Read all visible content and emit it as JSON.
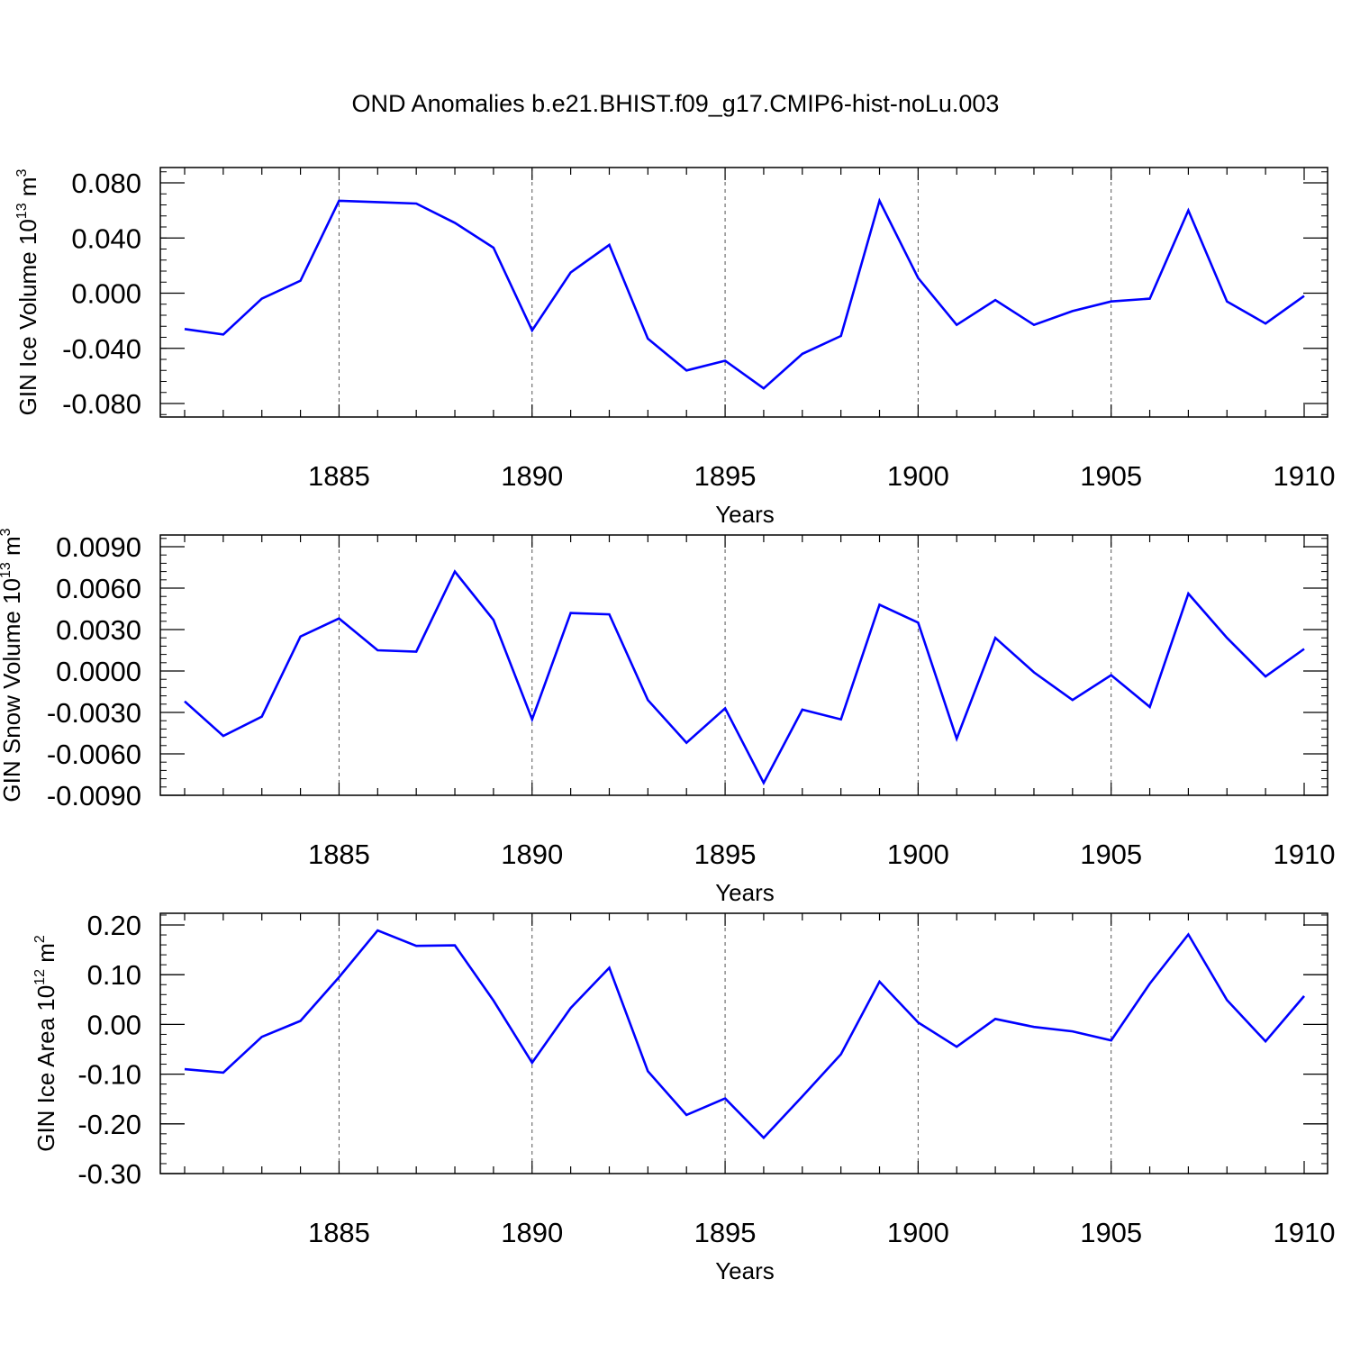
{
  "title": "OND Anomalies b.e21.BHIST.f09_g17.CMIP6-hist-noLu.003",
  "colors": {
    "series": "#0000ff",
    "axis": "#000000",
    "grid": "#555555"
  },
  "chart_data": [
    {
      "type": "line",
      "title": "",
      "xlabel": "Years",
      "ylabel_base": "GIN Ice Volume 10",
      "ylabel_exp": "13",
      "ylabel_unit": " m",
      "ylabel_unit_exp": "3",
      "xlim": [
        1881,
        1910
      ],
      "ylim": [
        -0.09,
        0.09
      ],
      "xticks": [
        1885,
        1890,
        1895,
        1900,
        1905,
        1910
      ],
      "xtick_labels": [
        "1885",
        "1890",
        "1895",
        "1900",
        "1905",
        "1910"
      ],
      "yticks": [
        0.08,
        0.04,
        0.0,
        -0.04,
        -0.08
      ],
      "ytick_labels": [
        "0.080",
        "0.040",
        "0.000",
        "-0.040",
        "-0.080"
      ],
      "grid": "vertical dashed at major x ticks",
      "x": [
        1881,
        1882,
        1883,
        1884,
        1885,
        1886,
        1887,
        1888,
        1889,
        1890,
        1891,
        1892,
        1893,
        1894,
        1895,
        1896,
        1897,
        1898,
        1899,
        1900,
        1901,
        1902,
        1903,
        1904,
        1905,
        1906,
        1907,
        1908,
        1909,
        1910
      ],
      "series": [
        {
          "name": "GIN Ice Volume",
          "values": [
            -0.026,
            -0.03,
            -0.004,
            0.009,
            0.067,
            0.066,
            0.065,
            0.051,
            0.033,
            -0.027,
            0.015,
            0.035,
            -0.033,
            -0.056,
            -0.049,
            -0.069,
            -0.044,
            -0.031,
            0.067,
            0.011,
            -0.023,
            -0.005,
            -0.023,
            -0.013,
            -0.006,
            -0.004,
            0.06,
            -0.006,
            -0.022,
            -0.002
          ]
        }
      ]
    },
    {
      "type": "line",
      "title": "",
      "xlabel": "Years",
      "ylabel_base": "GIN Snow Volume 10",
      "ylabel_exp": "13",
      "ylabel_unit": " m",
      "ylabel_unit_exp": "3",
      "xlim": [
        1881,
        1910
      ],
      "ylim": [
        -0.009,
        0.009
      ],
      "xticks": [
        1885,
        1890,
        1895,
        1900,
        1905,
        1910
      ],
      "xtick_labels": [
        "1885",
        "1890",
        "1895",
        "1900",
        "1905",
        "1910"
      ],
      "yticks": [
        0.009,
        0.006,
        0.003,
        0.0,
        -0.003,
        -0.006,
        -0.009
      ],
      "ytick_labels": [
        "0.0090",
        "0.0060",
        "0.0030",
        "0.0000",
        "-0.0030",
        "-0.0060",
        "-0.0090"
      ],
      "grid": "vertical dashed at major x ticks",
      "x": [
        1881,
        1882,
        1883,
        1884,
        1885,
        1886,
        1887,
        1888,
        1889,
        1890,
        1891,
        1892,
        1893,
        1894,
        1895,
        1896,
        1897,
        1898,
        1899,
        1900,
        1901,
        1902,
        1903,
        1904,
        1905,
        1906,
        1907,
        1908,
        1909,
        1910
      ],
      "series": [
        {
          "name": "GIN Snow Volume",
          "values": [
            -0.0022,
            -0.0047,
            -0.0033,
            0.0025,
            0.0038,
            0.0015,
            0.0014,
            0.0072,
            0.0037,
            -0.0035,
            0.0042,
            0.0041,
            -0.0021,
            -0.0052,
            -0.0027,
            -0.0081,
            -0.0028,
            -0.0035,
            0.0048,
            0.0035,
            -0.0049,
            0.0024,
            -0.0001,
            -0.0021,
            -0.0003,
            -0.0026,
            0.0056,
            0.0024,
            -0.0004,
            0.0016
          ]
        }
      ]
    },
    {
      "type": "line",
      "title": "",
      "xlabel": "Years",
      "ylabel_base": "GIN Ice Area 10",
      "ylabel_exp": "12",
      "ylabel_unit": " m",
      "ylabel_unit_exp": "2",
      "xlim": [
        1881,
        1910
      ],
      "ylim": [
        -0.3,
        0.2
      ],
      "xticks": [
        1885,
        1890,
        1895,
        1900,
        1905,
        1910
      ],
      "xtick_labels": [
        "1885",
        "1890",
        "1895",
        "1900",
        "1905",
        "1910"
      ],
      "yticks": [
        0.2,
        0.1,
        0.0,
        -0.1,
        -0.2,
        -0.3
      ],
      "ytick_labels": [
        "0.20",
        "0.10",
        "0.00",
        "-0.10",
        "-0.20",
        "-0.30"
      ],
      "grid": "vertical dashed at major x ticks",
      "x": [
        1881,
        1882,
        1883,
        1884,
        1885,
        1886,
        1887,
        1888,
        1889,
        1890,
        1891,
        1892,
        1893,
        1894,
        1895,
        1896,
        1897,
        1898,
        1899,
        1900,
        1901,
        1902,
        1903,
        1904,
        1905,
        1906,
        1907,
        1908,
        1909,
        1910
      ],
      "series": [
        {
          "name": "GIN Ice Area",
          "values": [
            -0.09,
            -0.097,
            -0.025,
            0.007,
            0.095,
            0.189,
            0.158,
            0.159,
            0.048,
            -0.077,
            0.033,
            0.114,
            -0.094,
            -0.182,
            -0.149,
            -0.228,
            -0.145,
            -0.06,
            0.086,
            0.004,
            -0.045,
            0.011,
            -0.005,
            -0.014,
            -0.032,
            0.082,
            0.181,
            0.049,
            -0.034,
            0.057
          ]
        }
      ]
    }
  ]
}
